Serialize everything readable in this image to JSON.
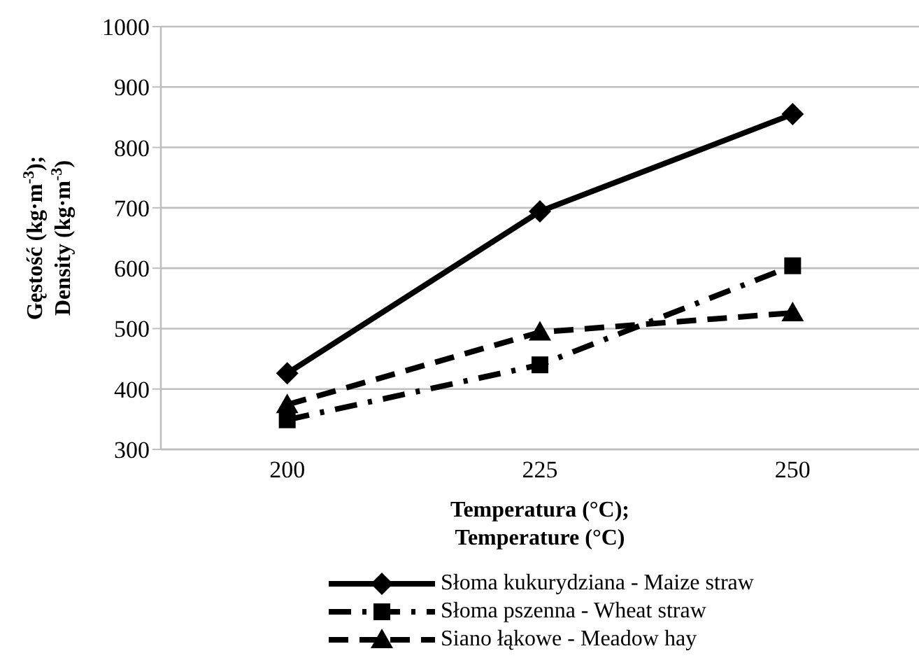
{
  "chart_data": {
    "type": "line",
    "xlabel": "Temperatura (°C);\nTemperature (°C)",
    "ylabel": "Gęstość (kg·m$^{-3}$);\nDensity (kg·m$^{-3}$)",
    "categories": [
      "200",
      "225",
      "250"
    ],
    "series": [
      {
        "name": "Słoma kukurydziana - Maize straw",
        "color": "#000000",
        "values": [
          426,
          694,
          855
        ],
        "marker": "diamond",
        "line_style": "solid"
      },
      {
        "name": "Słoma pszenna - Wheat straw",
        "color": "#000000",
        "values": [
          349,
          440,
          604
        ],
        "marker": "square",
        "line_style": "dashdot"
      },
      {
        "name": "Siano łąkowe - Meadow hay",
        "color": "#000000",
        "values": [
          374,
          494,
          526
        ],
        "marker": "triangle",
        "line_style": "dashed"
      }
    ],
    "ylim": [
      300,
      1000
    ],
    "yticks": [
      300,
      400,
      500,
      600,
      700,
      800,
      900,
      1000
    ],
    "grid": "y",
    "legend": "bottom"
  }
}
